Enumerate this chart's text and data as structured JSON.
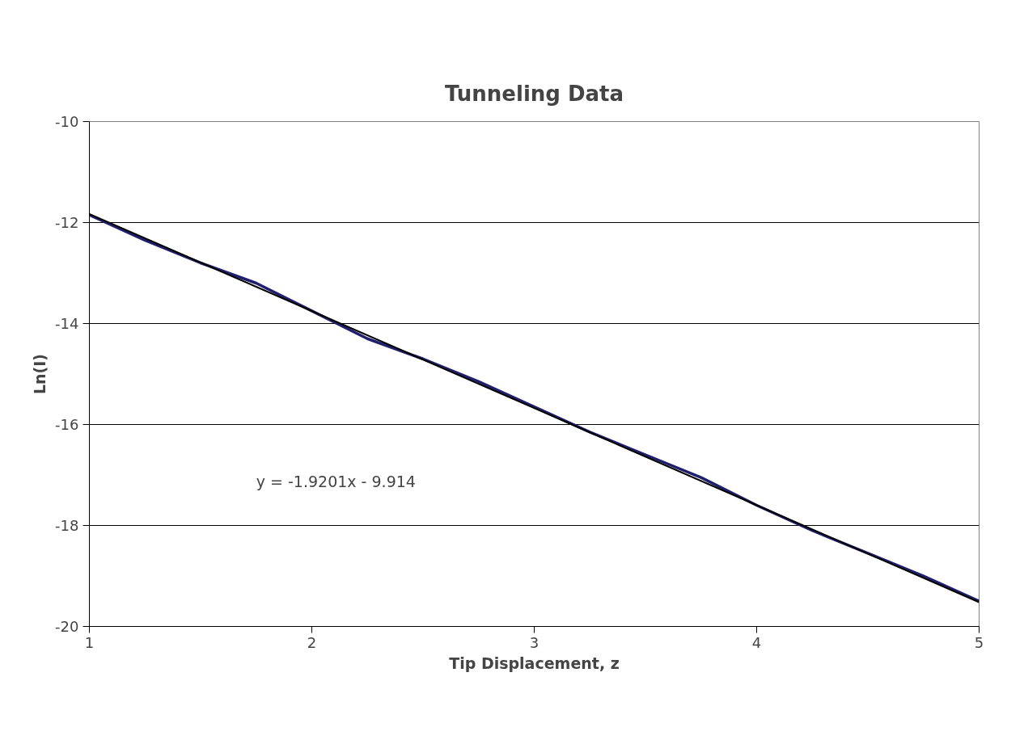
{
  "chart_data": {
    "type": "line",
    "title": "Tunneling Data",
    "xlabel": "Tip Displacement, z",
    "ylabel": "Ln(I)",
    "xlim": [
      1,
      5
    ],
    "xticks": [
      1,
      2,
      3,
      4,
      5
    ],
    "ylim": [
      -20,
      -10
    ],
    "yticks": [
      -20,
      -18,
      -16,
      -14,
      -12,
      -10
    ],
    "grid": "y",
    "marker": "none",
    "line_style": "solid",
    "x": [
      1,
      1.25,
      1.5,
      1.75,
      2,
      2.25,
      2.5,
      2.75,
      3,
      3.25,
      3.5,
      3.75,
      4,
      4.25,
      4.5,
      4.75,
      5
    ],
    "series": [
      {
        "color": "#1f1f6e",
        "values": [
          -11.85,
          -12.35,
          -12.8,
          -13.2,
          -13.75,
          -14.3,
          -14.7,
          -15.15,
          -15.65,
          -16.15,
          -16.6,
          -17.05,
          -17.6,
          -18.1,
          -18.55,
          -19.0,
          -19.5
        ]
      },
      {
        "type": "line",
        "color": "#000000",
        "x": [
          1,
          5
        ],
        "values": [
          -11.83,
          -19.52
        ]
      }
    ],
    "annotations": [
      "y = -1.9201x - 9.914"
    ]
  }
}
